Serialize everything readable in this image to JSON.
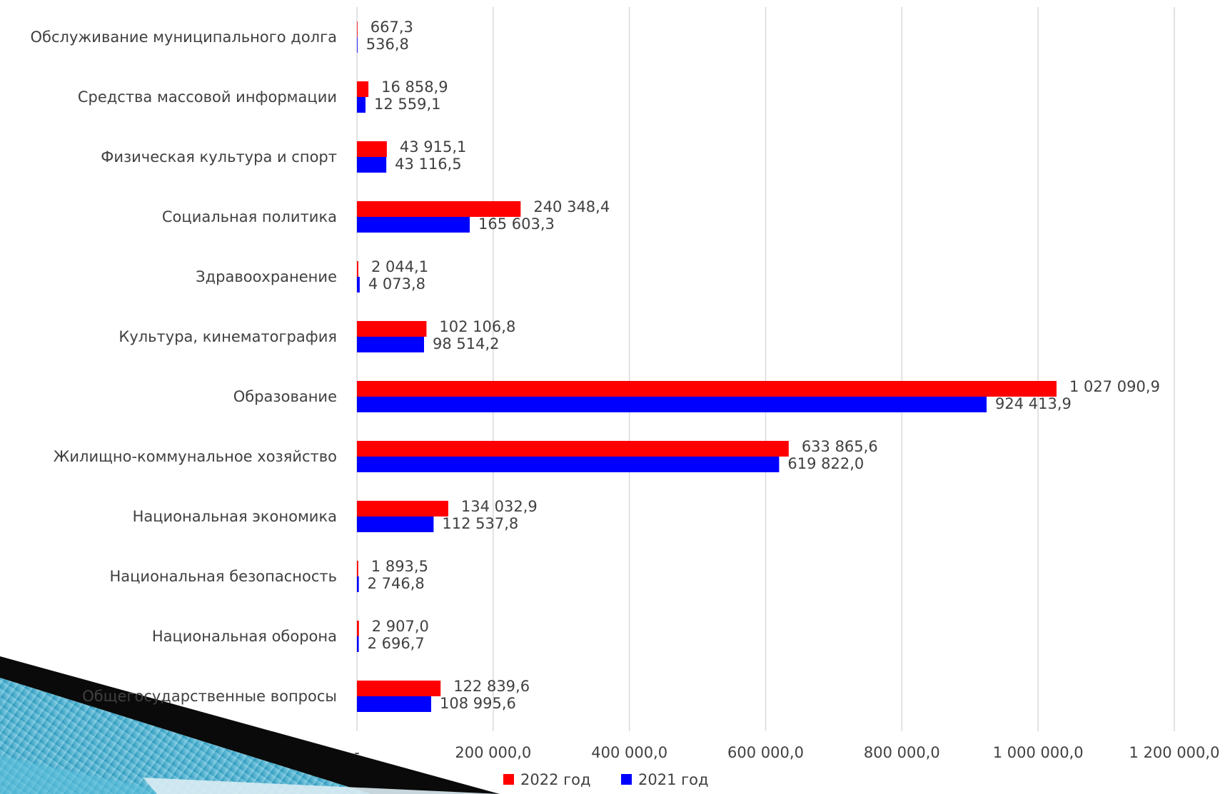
{
  "chart_data": {
    "type": "bar",
    "orientation": "horizontal",
    "title": "",
    "xlabel": "",
    "ylabel": "",
    "categories": [
      "Обслуживание муниципального долга",
      "Средства массовой информации",
      "Физическая культура и спорт",
      "Социальная политика",
      "Здравоохранение",
      "Культура, кинематография",
      "Образование",
      "Жилищно-коммунальное хозяйство",
      "Национальная экономика",
      "Национальная безопасность",
      "Национальная оборона",
      "Общегосударственные вопросы"
    ],
    "series": [
      {
        "name": "2022 год",
        "color": "#ff0000",
        "values": [
          667.3,
          16858.9,
          43915.1,
          240348.4,
          2044.1,
          102106.8,
          1027090.9,
          633865.6,
          134032.9,
          1893.5,
          2907.0,
          122839.6
        ],
        "labels": [
          "667,3",
          "16 858,9",
          "43 915,1",
          "240 348,4",
          "2 044,1",
          "102 106,8",
          "1 027 090,9",
          "633 865,6",
          "134 032,9",
          "1 893,5",
          "2 907,0",
          "122 839,6"
        ]
      },
      {
        "name": "2021 год",
        "color": "#0000ff",
        "values": [
          536.8,
          12559.1,
          43116.5,
          165603.3,
          4073.8,
          98514.2,
          924413.9,
          619822.0,
          112537.8,
          2746.8,
          2696.7,
          108995.6
        ],
        "labels": [
          "536,8",
          "12 559,1",
          "43 116,5",
          "165 603,3",
          "4 073,8",
          "98 514,2",
          "924 413,9",
          "619 822,0",
          "112 537,8",
          "2 746,8",
          "2 696,7",
          "108 995,6"
        ]
      }
    ],
    "xlim": [
      0,
      1200000
    ],
    "x_ticks": [
      0,
      200000,
      400000,
      600000,
      800000,
      1000000,
      1200000
    ],
    "x_tick_labels": [
      "-",
      "200 000,0",
      "400 000,0",
      "600 000,0",
      "800 000,0",
      "1 000 000,0",
      "1 200 000,0"
    ],
    "grid": true,
    "legend_position": "bottom"
  }
}
